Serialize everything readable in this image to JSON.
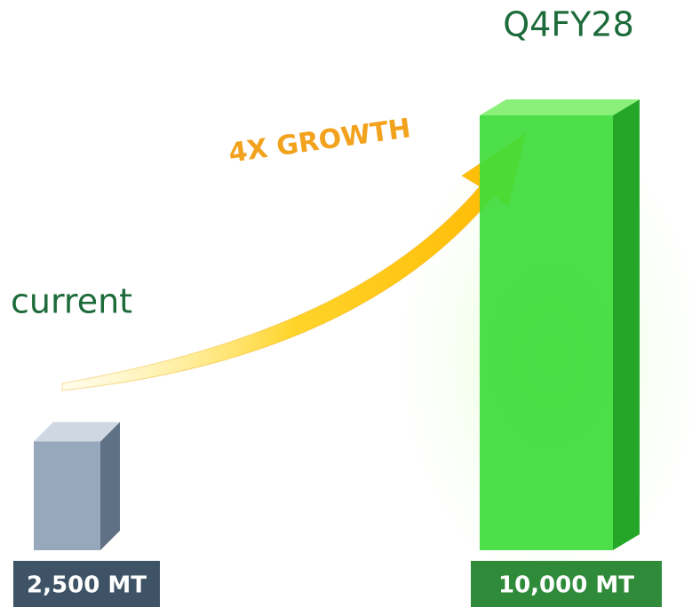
{
  "chart_data": {
    "type": "bar",
    "categories": [
      "current",
      "Q4FY28"
    ],
    "values": [
      2500,
      10000
    ],
    "value_labels": [
      "2,500 MT",
      "10,000 MT"
    ],
    "colors": [
      "#8fa1b6",
      "#3ddc3a"
    ],
    "annotation": "4X GROWTH"
  }
}
